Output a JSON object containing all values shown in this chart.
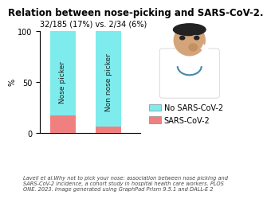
{
  "title": "Relation between nose-picking and SARS-CoV-2.",
  "subtitle": "32/185 (17%) vs. 2/34 (6%)",
  "categories": [
    "Nose picker",
    "Non nose picker"
  ],
  "sars_pct": [
    17,
    6
  ],
  "no_sars_pct": [
    83,
    94
  ],
  "color_sars": "#F08080",
  "color_no_sars": "#7EECED",
  "ylabel": "%",
  "ylim": [
    0,
    100
  ],
  "yticks": [
    0,
    50,
    100
  ],
  "legend_labels": [
    "No SARS-CoV-2",
    "SARS-CoV-2"
  ],
  "bar_width": 0.55,
  "bar_label_fontsize": 6.5,
  "title_fontsize": 8.5,
  "subtitle_fontsize": 7,
  "axis_fontsize": 7,
  "legend_fontsize": 7,
  "caption_fontsize": 4.8,
  "x_positions": [
    0.5,
    1.5
  ]
}
